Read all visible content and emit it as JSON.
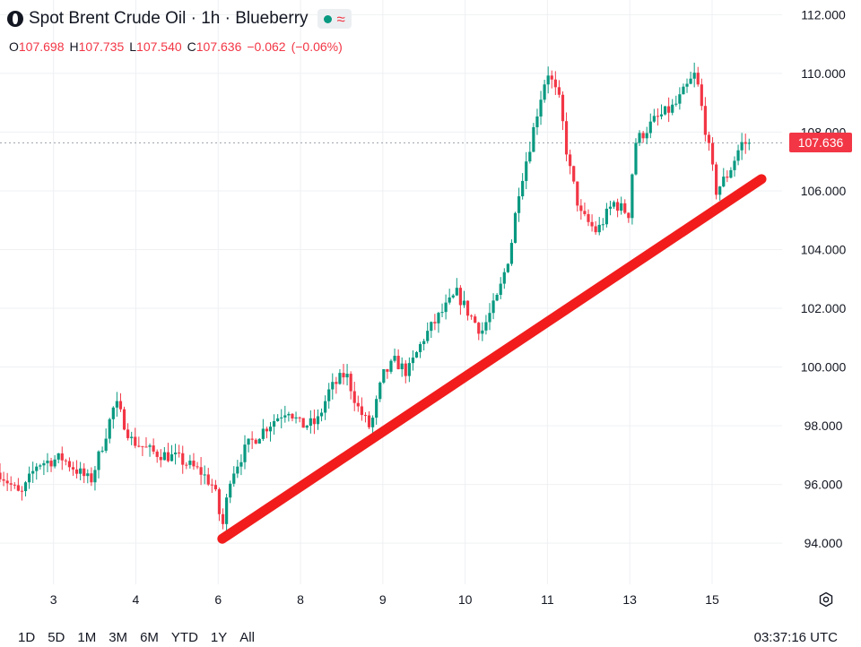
{
  "header": {
    "title": "Spot Brent Crude Oil · 1h · Blueberry",
    "ohlc": [
      {
        "label": "O",
        "value": "107.698"
      },
      {
        "label": "H",
        "value": "107.735"
      },
      {
        "label": "L",
        "value": "107.540"
      },
      {
        "label": "C",
        "value": "107.636"
      },
      {
        "label": "",
        "value": "−0.062"
      },
      {
        "label": "",
        "value": "(−0.06%)"
      }
    ]
  },
  "current_price_label": "107.636",
  "time_ranges": [
    "1D",
    "5D",
    "1M",
    "3M",
    "6M",
    "YTD",
    "1Y",
    "All"
  ],
  "clock": "03:37:16 UTC",
  "colors": {
    "up": "#089981",
    "down": "#f23645",
    "trendline": "#f21c1c",
    "grid": "#eef0f3"
  },
  "chart_data": {
    "type": "candlestick",
    "title": "Spot Brent Crude Oil · 1h · Blueberry",
    "y_axis": {
      "ticks": [
        94,
        96,
        98,
        100,
        102,
        104,
        106,
        108,
        110,
        112
      ],
      "tick_labels": [
        "94.000",
        "96.000",
        "98.000",
        "100.000",
        "102.000",
        "104.000",
        "106.000",
        "108.000",
        "110.000",
        "112.000"
      ],
      "range": [
        92.6,
        112.5
      ],
      "position": "right"
    },
    "x_axis": {
      "tick_labels": [
        "3",
        "4",
        "6",
        "8",
        "9",
        "10",
        "11",
        "13",
        "15"
      ],
      "tick_positions": [
        1,
        2,
        3,
        4,
        5,
        6,
        7,
        8,
        9
      ]
    },
    "x_range": [
      0.35,
      9.85
    ],
    "grid": true,
    "last_price": 107.636,
    "guide_points": [
      [
        0.35,
        96.4
      ],
      [
        0.6,
        95.6
      ],
      [
        0.8,
        96.7
      ],
      [
        1.1,
        96.9
      ],
      [
        1.45,
        96.1
      ],
      [
        1.6,
        97.4
      ],
      [
        1.75,
        98.8
      ],
      [
        1.95,
        97.5
      ],
      [
        2.2,
        97.1
      ],
      [
        2.5,
        96.9
      ],
      [
        2.8,
        96.4
      ],
      [
        2.95,
        95.9
      ],
      [
        3.05,
        94.5
      ],
      [
        3.15,
        96.3
      ],
      [
        3.35,
        97.3
      ],
      [
        3.6,
        98.0
      ],
      [
        3.85,
        98.6
      ],
      [
        4.0,
        98.0
      ],
      [
        4.2,
        98.1
      ],
      [
        4.35,
        99.2
      ],
      [
        4.55,
        99.8
      ],
      [
        4.7,
        98.6
      ],
      [
        4.85,
        97.9
      ],
      [
        5.0,
        99.7
      ],
      [
        5.15,
        100.2
      ],
      [
        5.3,
        99.8
      ],
      [
        5.5,
        101.0
      ],
      [
        5.7,
        101.8
      ],
      [
        5.9,
        102.5
      ],
      [
        6.05,
        101.8
      ],
      [
        6.2,
        101.2
      ],
      [
        6.4,
        102.4
      ],
      [
        6.55,
        104.0
      ],
      [
        6.65,
        106.0
      ],
      [
        6.8,
        107.7
      ],
      [
        6.9,
        109.0
      ],
      [
        7.0,
        110.1
      ],
      [
        7.15,
        109.0
      ],
      [
        7.25,
        107.0
      ],
      [
        7.4,
        105.2
      ],
      [
        7.6,
        104.6
      ],
      [
        7.8,
        105.6
      ],
      [
        8.0,
        105.2
      ],
      [
        8.05,
        107.6
      ],
      [
        8.3,
        108.4
      ],
      [
        8.55,
        108.9
      ],
      [
        8.8,
        110.0
      ],
      [
        8.95,
        107.6
      ],
      [
        9.05,
        106.0
      ],
      [
        9.2,
        106.6
      ],
      [
        9.35,
        107.6
      ],
      [
        9.45,
        107.636
      ]
    ],
    "trendline": {
      "start": [
        3.05,
        94.15
      ],
      "end": [
        9.6,
        106.4
      ]
    }
  }
}
